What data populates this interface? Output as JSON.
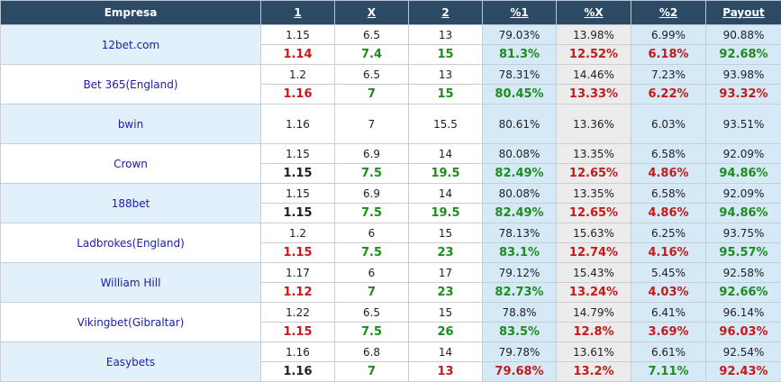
{
  "headers": {
    "bookmaker": "Empresa",
    "one": "1",
    "x": "X",
    "two": "2",
    "pct1": "%1",
    "pctx": "%X",
    "pct2": "%2",
    "payout": "Payout"
  },
  "colors": {
    "header_bg": "#2d4a65",
    "up_green": "#1e8b1e",
    "down_red": "#c41a1a",
    "bookie_link": "#1b1bb0",
    "pct_blue_bg": "#d5e9f7",
    "pct_grey_bg": "#ececec"
  },
  "bookmakers": [
    {
      "name": "12bet.com",
      "opening": {
        "one": "1.15",
        "x": "6.5",
        "two": "13",
        "pct1": "79.03%",
        "pctx": "13.98%",
        "pct2": "6.99%",
        "payout": "90.88%"
      },
      "current": {
        "one": "1.14",
        "x": "7.4",
        "two": "15",
        "pct1": "81.3%",
        "pctx": "12.52%",
        "pct2": "6.18%",
        "payout": "92.68%"
      }
    },
    {
      "name": "Bet 365(England)",
      "opening": {
        "one": "1.2",
        "x": "6.5",
        "two": "13",
        "pct1": "78.31%",
        "pctx": "14.46%",
        "pct2": "7.23%",
        "payout": "93.98%"
      },
      "current": {
        "one": "1.16",
        "x": "7",
        "two": "15",
        "pct1": "80.45%",
        "pctx": "13.33%",
        "pct2": "6.22%",
        "payout": "93.32%"
      }
    },
    {
      "name": "bwin",
      "opening": {
        "one": "1.16",
        "x": "7",
        "two": "15.5",
        "pct1": "80.61%",
        "pctx": "13.36%",
        "pct2": "6.03%",
        "payout": "93.51%"
      }
    },
    {
      "name": "Crown",
      "opening": {
        "one": "1.15",
        "x": "6.9",
        "two": "14",
        "pct1": "80.08%",
        "pctx": "13.35%",
        "pct2": "6.58%",
        "payout": "92.09%"
      },
      "current": {
        "one": "1.15",
        "x": "7.5",
        "two": "19.5",
        "pct1": "82.49%",
        "pctx": "12.65%",
        "pct2": "4.86%",
        "payout": "94.86%"
      }
    },
    {
      "name": "188bet",
      "opening": {
        "one": "1.15",
        "x": "6.9",
        "two": "14",
        "pct1": "80.08%",
        "pctx": "13.35%",
        "pct2": "6.58%",
        "payout": "92.09%"
      },
      "current": {
        "one": "1.15",
        "x": "7.5",
        "two": "19.5",
        "pct1": "82.49%",
        "pctx": "12.65%",
        "pct2": "4.86%",
        "payout": "94.86%"
      }
    },
    {
      "name": "Ladbrokes(England)",
      "opening": {
        "one": "1.2",
        "x": "6",
        "two": "15",
        "pct1": "78.13%",
        "pctx": "15.63%",
        "pct2": "6.25%",
        "payout": "93.75%"
      },
      "current": {
        "one": "1.15",
        "x": "7.5",
        "two": "23",
        "pct1": "83.1%",
        "pctx": "12.74%",
        "pct2": "4.16%",
        "payout": "95.57%"
      }
    },
    {
      "name": "William Hill",
      "opening": {
        "one": "1.17",
        "x": "6",
        "two": "17",
        "pct1": "79.12%",
        "pctx": "15.43%",
        "pct2": "5.45%",
        "payout": "92.58%"
      },
      "current": {
        "one": "1.12",
        "x": "7",
        "two": "23",
        "pct1": "82.73%",
        "pctx": "13.24%",
        "pct2": "4.03%",
        "payout": "92.66%"
      }
    },
    {
      "name": "Vikingbet(Gibraltar)",
      "opening": {
        "one": "1.22",
        "x": "6.5",
        "two": "15",
        "pct1": "78.8%",
        "pctx": "14.79%",
        "pct2": "6.41%",
        "payout": "96.14%"
      },
      "current": {
        "one": "1.15",
        "x": "7.5",
        "two": "26",
        "pct1": "83.5%",
        "pctx": "12.8%",
        "pct2": "3.69%",
        "payout": "96.03%"
      }
    },
    {
      "name": "Easybets",
      "opening": {
        "one": "1.16",
        "x": "6.8",
        "two": "14",
        "pct1": "79.78%",
        "pctx": "13.61%",
        "pct2": "6.61%",
        "payout": "92.54%"
      },
      "current": {
        "one": "1.16",
        "x": "7",
        "two": "13",
        "pct1": "79.68%",
        "pctx": "13.2%",
        "pct2": "7.11%",
        "payout": "92.43%"
      }
    }
  ]
}
